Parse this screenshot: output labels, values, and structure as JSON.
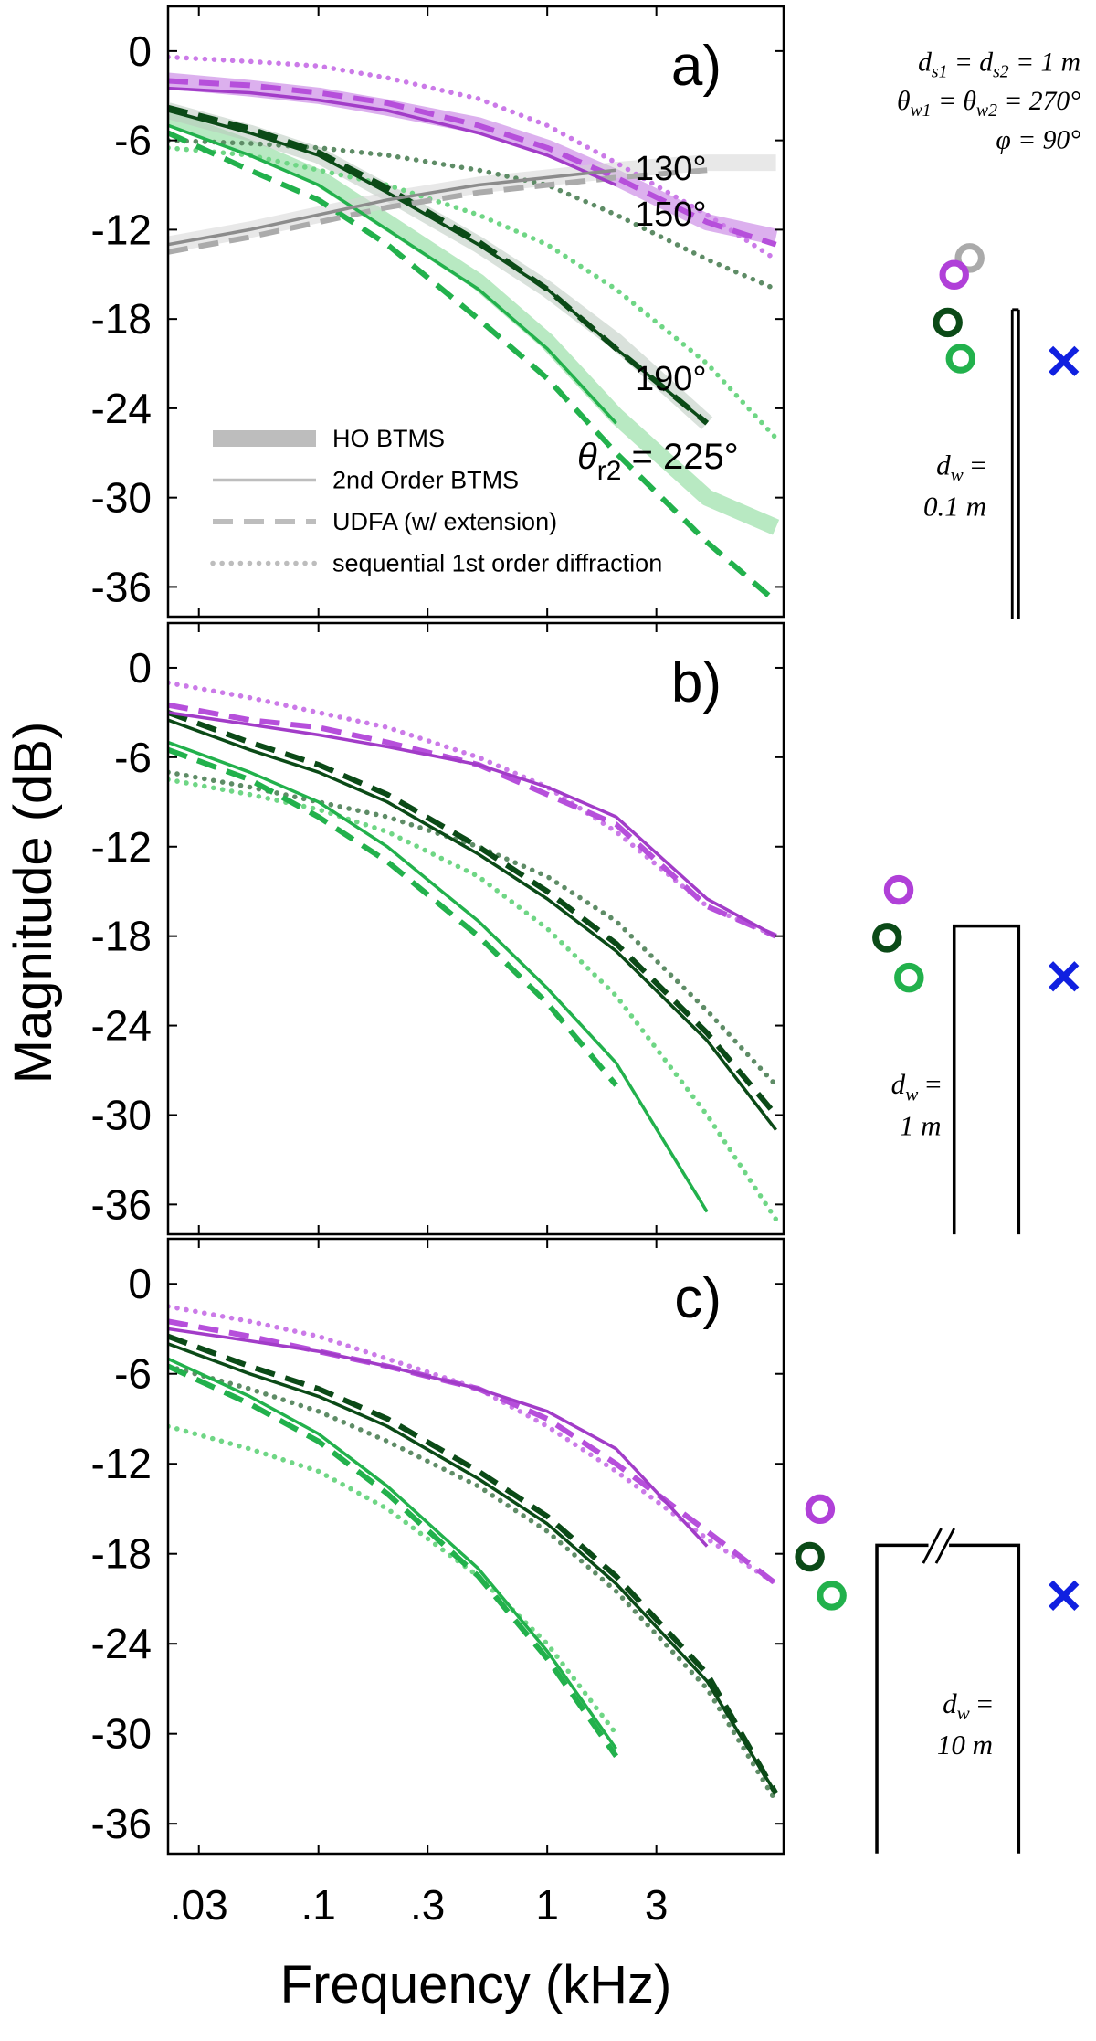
{
  "chart_data": [
    {
      "type": "line",
      "panel_label": "a)",
      "annotations": [
        "130°",
        "150°",
        "190°"
      ],
      "angle_label": [
        "θ",
        "r2",
        " = 225°"
      ],
      "x": [
        0.022,
        0.05,
        0.1,
        0.2,
        0.5,
        1,
        2,
        5,
        10
      ],
      "xlim": [
        0.022,
        10.8
      ],
      "xticks": [
        0.03,
        0.1,
        0.3,
        1,
        3
      ],
      "xscale": "log",
      "ylim": [
        -38,
        3
      ],
      "yticks": [
        0,
        -6,
        -12,
        -18,
        -24,
        -30,
        -36
      ],
      "legend": [
        {
          "label": "HO BTMS",
          "style": "band"
        },
        {
          "label": "2nd Order BTMS",
          "style": "solid"
        },
        {
          "label": "UDFA (w/ extension)",
          "style": "dashed"
        },
        {
          "label": "sequential 1st order diffraction",
          "style": "dotted"
        }
      ],
      "legend_color": "#bdbdbd",
      "series": [
        {
          "color": "#c070e0",
          "style": "band",
          "values": [
            -2,
            -2.5,
            -3,
            -3.8,
            -5,
            -6.5,
            -8.5,
            -11.5,
            -12.5
          ]
        },
        {
          "color": "#7ed78f",
          "style": "band",
          "values": [
            -4.5,
            -6.5,
            -8.5,
            -11.5,
            -15.5,
            -19.5,
            -24.5,
            -30,
            -32
          ]
        },
        {
          "color": "#b9c9bd",
          "style": "band",
          "values": [
            -4,
            -5.5,
            -7,
            -9.5,
            -13,
            -16,
            -19.5,
            -25,
            null
          ]
        },
        {
          "color": "#d6d6d6",
          "style": "band",
          "values": [
            -13,
            -12,
            -11,
            -10,
            -9,
            -8.5,
            -8,
            -7.5,
            -7.5
          ]
        },
        {
          "color": "#a23cc8",
          "style": "solid",
          "values": [
            -2.5,
            -2.8,
            -3.3,
            -4,
            -5.5,
            -7,
            -9,
            null,
            null
          ]
        },
        {
          "color": "#b64fdb",
          "style": "dashed",
          "values": [
            -2,
            -2.3,
            -2.8,
            -3.5,
            -5,
            -6.5,
            -8.5,
            -11.5,
            -13
          ]
        },
        {
          "color": "#cb7ae8",
          "style": "dotted",
          "values": [
            -0.4,
            -0.7,
            -1,
            -1.8,
            -3.2,
            -5,
            -7.5,
            -11,
            -14
          ]
        },
        {
          "color": "#0b4a17",
          "style": "solid",
          "values": [
            -4,
            -5.5,
            -7,
            -9.5,
            -13,
            -16,
            -20,
            -25,
            null
          ]
        },
        {
          "color": "#0b4a17",
          "style": "dashed",
          "values": [
            -3.8,
            -5.2,
            -6.8,
            -9.2,
            -12.8,
            -16,
            -20,
            -25,
            null
          ]
        },
        {
          "color": "#5e8c66",
          "style": "dotted",
          "values": [
            -6,
            -6.2,
            -6.5,
            -7,
            -8,
            -9,
            -11,
            -14,
            -16
          ]
        },
        {
          "color": "#22b14c",
          "style": "solid",
          "values": [
            -5,
            -7,
            -9,
            -12,
            -16,
            -20,
            -25,
            null,
            null
          ]
        },
        {
          "color": "#22b14c",
          "style": "dashed",
          "values": [
            -5.5,
            -8,
            -10,
            -13,
            -18,
            -22,
            -27,
            -33,
            -37
          ]
        },
        {
          "color": "#6fd685",
          "style": "dotted",
          "values": [
            -6.5,
            -7,
            -8,
            -9,
            -11,
            -13,
            -16,
            -21,
            -26
          ]
        },
        {
          "color": "#8c8c8c",
          "style": "solid",
          "values": [
            -13,
            -12,
            -11,
            -10,
            -9,
            -8.5,
            -8,
            null,
            null
          ]
        },
        {
          "color": "#ababab",
          "style": "dashed",
          "values": [
            -13.5,
            -12.5,
            -11.5,
            -10.5,
            -9.5,
            -9,
            -8.5,
            -8,
            null
          ]
        }
      ]
    },
    {
      "type": "line",
      "panel_label": "b)",
      "ylabel": "Magnitude (dB)",
      "x": [
        0.022,
        0.05,
        0.1,
        0.2,
        0.5,
        1,
        2,
        5,
        10
      ],
      "xlim": [
        0.022,
        10.8
      ],
      "xticks": [
        0.03,
        0.1,
        0.3,
        1,
        3
      ],
      "xscale": "log",
      "ylim": [
        -38,
        3
      ],
      "yticks": [
        0,
        -6,
        -12,
        -18,
        -24,
        -30,
        -36
      ],
      "series": [
        {
          "color": "#a23cc8",
          "style": "solid",
          "values": [
            -3,
            -3.8,
            -4.5,
            -5.3,
            -6.5,
            -8,
            -10,
            -15.5,
            -18
          ]
        },
        {
          "color": "#b64fdb",
          "style": "dashed",
          "values": [
            -2.5,
            -3.5,
            -4,
            -5,
            -6.5,
            -8.5,
            -10.5,
            -16,
            -18
          ]
        },
        {
          "color": "#cb7ae8",
          "style": "dotted",
          "values": [
            -1,
            -2,
            -3,
            -4,
            -6,
            -8,
            -11,
            -16,
            -18
          ]
        },
        {
          "color": "#0b4a17",
          "style": "solid",
          "values": [
            -3.5,
            -5.5,
            -7,
            -9,
            -12.5,
            -15.5,
            -19,
            -25,
            -31
          ]
        },
        {
          "color": "#0b4a17",
          "style": "dashed",
          "values": [
            -3,
            -5,
            -6.5,
            -8.5,
            -12,
            -15,
            -18.5,
            -24.5,
            -30
          ]
        },
        {
          "color": "#5e8c66",
          "style": "dotted",
          "values": [
            -7,
            -8,
            -9,
            -10,
            -12,
            -14,
            -17,
            -23,
            -28
          ]
        },
        {
          "color": "#22b14c",
          "style": "solid",
          "values": [
            -5,
            -7,
            -9,
            -12,
            -17,
            -21.5,
            -26.5,
            -36.5,
            null
          ]
        },
        {
          "color": "#22b14c",
          "style": "dashed",
          "values": [
            -5.5,
            -7.5,
            -10,
            -13,
            -18,
            -22.5,
            -28,
            null,
            null
          ]
        },
        {
          "color": "#6fd685",
          "style": "dotted",
          "values": [
            -7.5,
            -8.5,
            -9.5,
            -11,
            -14,
            -17.5,
            -22,
            -30,
            -37
          ]
        }
      ]
    },
    {
      "type": "line",
      "panel_label": "c)",
      "xlabel": "Frequency (kHz)",
      "x": [
        0.022,
        0.05,
        0.1,
        0.2,
        0.5,
        1,
        2,
        5,
        10
      ],
      "xlim": [
        0.022,
        10.8
      ],
      "xticks": [
        {
          "value": 0.03,
          "label": ".03"
        },
        {
          "value": 0.1,
          "label": ".1"
        },
        {
          "value": 0.3,
          "label": ".3"
        },
        1,
        3
      ],
      "xscale": "log",
      "ylim": [
        -38,
        3
      ],
      "yticks": [
        0,
        -6,
        -12,
        -18,
        -24,
        -30,
        -36
      ],
      "series": [
        {
          "color": "#a23cc8",
          "style": "solid",
          "values": [
            -3,
            -3.8,
            -4.5,
            -5.5,
            -7,
            -8.5,
            -11,
            -17.5,
            null
          ]
        },
        {
          "color": "#b64fdb",
          "style": "dashed",
          "values": [
            -2.5,
            -3.5,
            -4.5,
            -5.5,
            -7,
            -9,
            -12,
            -16.5,
            -20
          ]
        },
        {
          "color": "#cb7ae8",
          "style": "dotted",
          "values": [
            -1.5,
            -2.5,
            -3.5,
            -5,
            -7,
            -9.5,
            -12.5,
            -17,
            -20
          ]
        },
        {
          "color": "#0b4a17",
          "style": "solid",
          "values": [
            -4,
            -6,
            -7.5,
            -9.5,
            -13,
            -16,
            -20,
            -26.5,
            -34
          ]
        },
        {
          "color": "#0b4a17",
          "style": "dashed",
          "values": [
            -3.5,
            -5.5,
            -7,
            -9,
            -12.5,
            -15.5,
            -19.5,
            -26,
            -34
          ]
        },
        {
          "color": "#5e8c66",
          "style": "dotted",
          "values": [
            -5.5,
            -7,
            -8.5,
            -10.5,
            -13.5,
            -16.5,
            -20.5,
            -27,
            -34.5
          ]
        },
        {
          "color": "#22b14c",
          "style": "solid",
          "values": [
            -5,
            -7.5,
            -10,
            -13.5,
            -19,
            -24.5,
            -31,
            null,
            null
          ]
        },
        {
          "color": "#22b14c",
          "style": "dashed",
          "values": [
            -5.5,
            -8,
            -10.5,
            -14,
            -19.5,
            -25,
            -31.5,
            null,
            null
          ]
        },
        {
          "color": "#6fd685",
          "style": "dotted",
          "values": [
            -9.5,
            -11,
            -12.5,
            -15,
            -19.5,
            -24,
            -30,
            null,
            null
          ]
        }
      ]
    }
  ],
  "diagram": {
    "params": [
      [
        {
          "t": "d"
        },
        {
          "sub": "s1"
        },
        {
          "t": " = d"
        },
        {
          "sub": "s2"
        },
        {
          "t": " = 1 m"
        }
      ],
      [
        {
          "t": "θ"
        },
        {
          "sub": "w1"
        },
        {
          "t": " = θ"
        },
        {
          "sub": "w2"
        },
        {
          "t": " = 270°"
        }
      ],
      [
        {
          "t": "φ = 90°"
        }
      ]
    ],
    "wall_widths": [
      {
        "d": "d",
        "sub": "w",
        "eq": " =",
        "value": "0.1 m"
      },
      {
        "d": "d",
        "sub": "w",
        "eq": " =",
        "value": "1 m"
      },
      {
        "d": "d",
        "sub": "w",
        "eq": " =",
        "value": "10 m"
      }
    ]
  }
}
